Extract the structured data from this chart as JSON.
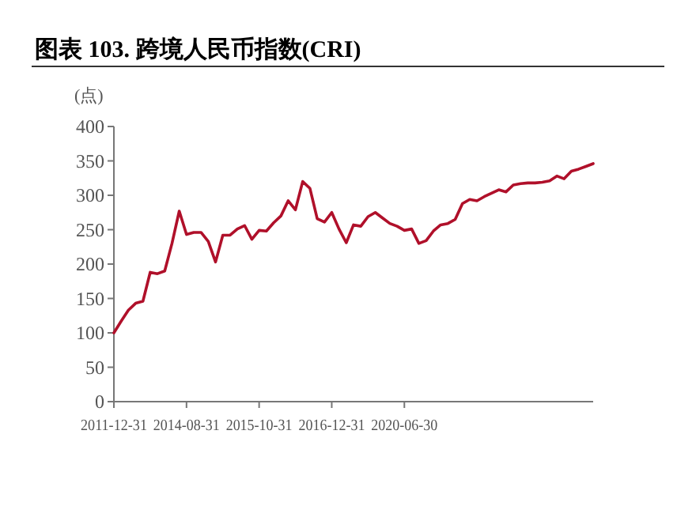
{
  "chart_data": {
    "type": "line",
    "title": "图表 103. 跨境人民币指数(CRI)",
    "ylabel": "(点)",
    "categories": [
      "2011-12-31",
      null,
      null,
      null,
      null,
      null,
      null,
      null,
      null,
      null,
      "2014-08-31",
      null,
      null,
      null,
      null,
      null,
      null,
      null,
      null,
      null,
      "2015-10-31",
      null,
      null,
      null,
      null,
      null,
      null,
      null,
      null,
      null,
      "2016-12-31",
      null,
      null,
      null,
      null,
      null,
      null,
      null,
      null,
      null,
      "2020-06-30",
      null,
      null,
      null,
      null,
      null,
      null,
      null,
      null,
      null,
      null,
      null,
      null,
      null,
      null,
      null,
      null,
      null,
      null,
      null,
      null,
      null,
      null,
      null,
      null,
      null,
      null
    ],
    "series": [
      {
        "color": "#b0102a",
        "values": [
          100,
          117,
          133,
          143,
          146,
          188,
          186,
          190,
          230,
          277,
          243,
          246,
          246,
          233,
          203,
          242,
          242,
          251,
          256,
          236,
          249,
          248,
          260,
          270,
          292,
          279,
          320,
          310,
          266,
          261,
          275,
          251,
          231,
          257,
          255,
          269,
          275,
          267,
          259,
          255,
          249,
          251,
          230,
          234,
          248,
          257,
          259,
          265,
          288,
          294,
          292,
          298,
          303,
          308,
          305,
          315,
          317,
          318,
          318,
          319,
          321,
          328,
          324,
          335,
          338,
          342,
          346
        ]
      }
    ],
    "ylim": [
      0,
      400
    ],
    "yticks": [
      0,
      50,
      100,
      150,
      200,
      250,
      300,
      350,
      400
    ],
    "grid": false
  }
}
